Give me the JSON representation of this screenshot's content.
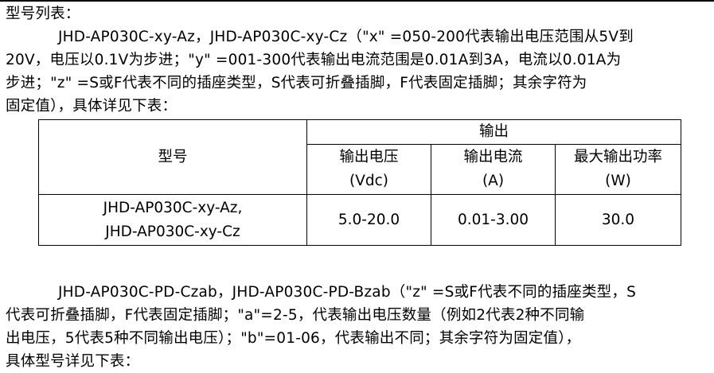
{
  "heading": "型号列表：",
  "para1": [
    "JHD-AP030C-xy-Az，JHD-AP030C-xy-Cz（\"x\" =050-200代表输出电压范围从5V到",
    "20V，电压以0.1V为步进；\"y\" =001-300代表输出电流范围是0.01A到3A，电流以0.01A为",
    "步进；\"z\" =S或F代表不同的插座类型，S代表可折叠插脚，F代表固定插脚；其余字符为",
    "固定值），具体详见下表："
  ],
  "table": {
    "model_header": "型号",
    "output_header": "输出",
    "columns": [
      {
        "line1": "输出电压",
        "line2": "(Vdc)"
      },
      {
        "line1": "输出电流",
        "line2": "(A)"
      },
      {
        "line1": "最大输出功率",
        "line2": "(W)"
      }
    ],
    "rows": [
      {
        "model_line1": "JHD-AP030C-xy-Az,",
        "model_line2": "JHD-AP030C-xy-Cz",
        "voltage": "5.0-20.0",
        "current": "0.01-3.00",
        "power": "30.0"
      }
    ]
  },
  "para2": [
    "JHD-AP030C-PD-Czab，JHD-AP030C-PD-Bzab（\"z\" =S或F代表不同的插座类型，S",
    "代表可折叠插脚，F代表固定插脚；\"a\"=2-5，代表输出电压数量（例如2代表2种不同输",
    "出电压，5代表5种不同输出电压）；\"b\"=01-06，代表输出不同；其余字符为固定值），",
    "具体型号详见下表："
  ]
}
